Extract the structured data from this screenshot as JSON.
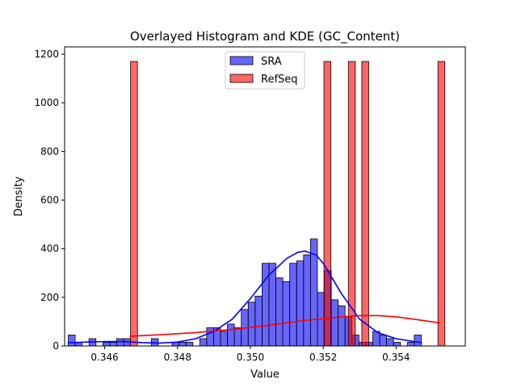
{
  "chart_data": {
    "type": "bar",
    "title": "Overlayed Histogram and KDE (GC_Content)",
    "xlabel": "Value",
    "ylabel": "Density",
    "xlim": [
      0.3449,
      0.3559
    ],
    "ylim": [
      0,
      1230
    ],
    "xticks": [
      0.346,
      0.348,
      0.35,
      0.352,
      0.354
    ],
    "xtick_labels": [
      "0.346",
      "0.348",
      "0.350",
      "0.352",
      "0.354"
    ],
    "yticks": [
      0,
      200,
      400,
      600,
      800,
      1000,
      1200
    ],
    "ytick_labels": [
      "0",
      "200",
      "400",
      "600",
      "800",
      "1000",
      "1200"
    ],
    "legend_position": "top-center",
    "grid": false,
    "series": [
      {
        "name": "SRA",
        "kind": "histogram",
        "color": "#0000ff",
        "bin_width": 0.00019,
        "bins": [
          {
            "x0": 0.345,
            "y": 45
          },
          {
            "x0": 0.34519,
            "y": 15
          },
          {
            "x0": 0.34557,
            "y": 30
          },
          {
            "x0": 0.34595,
            "y": 15
          },
          {
            "x0": 0.34614,
            "y": 15
          },
          {
            "x0": 0.34633,
            "y": 30
          },
          {
            "x0": 0.34652,
            "y": 30
          },
          {
            "x0": 0.34728,
            "y": 30
          },
          {
            "x0": 0.34785,
            "y": 15
          },
          {
            "x0": 0.34804,
            "y": 15
          },
          {
            "x0": 0.34823,
            "y": 15
          },
          {
            "x0": 0.34861,
            "y": 30
          },
          {
            "x0": 0.3488,
            "y": 75
          },
          {
            "x0": 0.34899,
            "y": 75
          },
          {
            "x0": 0.34918,
            "y": 60
          },
          {
            "x0": 0.34937,
            "y": 90
          },
          {
            "x0": 0.34956,
            "y": 75
          },
          {
            "x0": 0.34975,
            "y": 150
          },
          {
            "x0": 0.34994,
            "y": 180
          },
          {
            "x0": 0.35013,
            "y": 205
          },
          {
            "x0": 0.35032,
            "y": 340
          },
          {
            "x0": 0.35051,
            "y": 340
          },
          {
            "x0": 0.3507,
            "y": 280
          },
          {
            "x0": 0.35089,
            "y": 265
          },
          {
            "x0": 0.35108,
            "y": 340
          },
          {
            "x0": 0.35127,
            "y": 350
          },
          {
            "x0": 0.35146,
            "y": 375
          },
          {
            "x0": 0.35165,
            "y": 440
          },
          {
            "x0": 0.35184,
            "y": 220
          },
          {
            "x0": 0.35203,
            "y": 310
          },
          {
            "x0": 0.35222,
            "y": 190
          },
          {
            "x0": 0.35241,
            "y": 165
          },
          {
            "x0": 0.3526,
            "y": 120
          },
          {
            "x0": 0.35279,
            "y": 45
          },
          {
            "x0": 0.35298,
            "y": 15
          },
          {
            "x0": 0.35317,
            "y": 15
          },
          {
            "x0": 0.35336,
            "y": 60
          },
          {
            "x0": 0.35355,
            "y": 45
          },
          {
            "x0": 0.35374,
            "y": 30
          },
          {
            "x0": 0.35393,
            "y": 15
          },
          {
            "x0": 0.35431,
            "y": 15
          },
          {
            "x0": 0.3545,
            "y": 45
          }
        ],
        "kde": {
          "x": [
            0.345,
            0.3455,
            0.346,
            0.3465,
            0.347,
            0.3475,
            0.348,
            0.3485,
            0.349,
            0.3495,
            0.35,
            0.3505,
            0.351,
            0.3513,
            0.3515,
            0.3518,
            0.352,
            0.3525,
            0.353,
            0.3535,
            0.354,
            0.3545,
            0.3547
          ],
          "y": [
            13,
            16,
            18,
            18,
            14,
            12,
            16,
            30,
            60,
            110,
            195,
            290,
            360,
            385,
            390,
            375,
            340,
            215,
            110,
            55,
            30,
            18,
            14
          ]
        }
      },
      {
        "name": "RefSeq",
        "kind": "histogram",
        "color": "#ff0000",
        "bin_width": 0.00019,
        "bins": [
          {
            "x0": 0.34671,
            "y": 1170
          },
          {
            "x0": 0.35202,
            "y": 1170
          },
          {
            "x0": 0.35269,
            "y": 1170
          },
          {
            "x0": 0.35306,
            "y": 1170
          },
          {
            "x0": 0.35515,
            "y": 1170
          }
        ],
        "kde": {
          "x": [
            0.3467,
            0.3475,
            0.3485,
            0.3495,
            0.3505,
            0.3515,
            0.3525,
            0.353,
            0.3535,
            0.354,
            0.3545,
            0.3552
          ],
          "y": [
            40,
            46,
            55,
            68,
            85,
            105,
            120,
            125,
            125,
            120,
            110,
            95
          ]
        }
      }
    ]
  }
}
